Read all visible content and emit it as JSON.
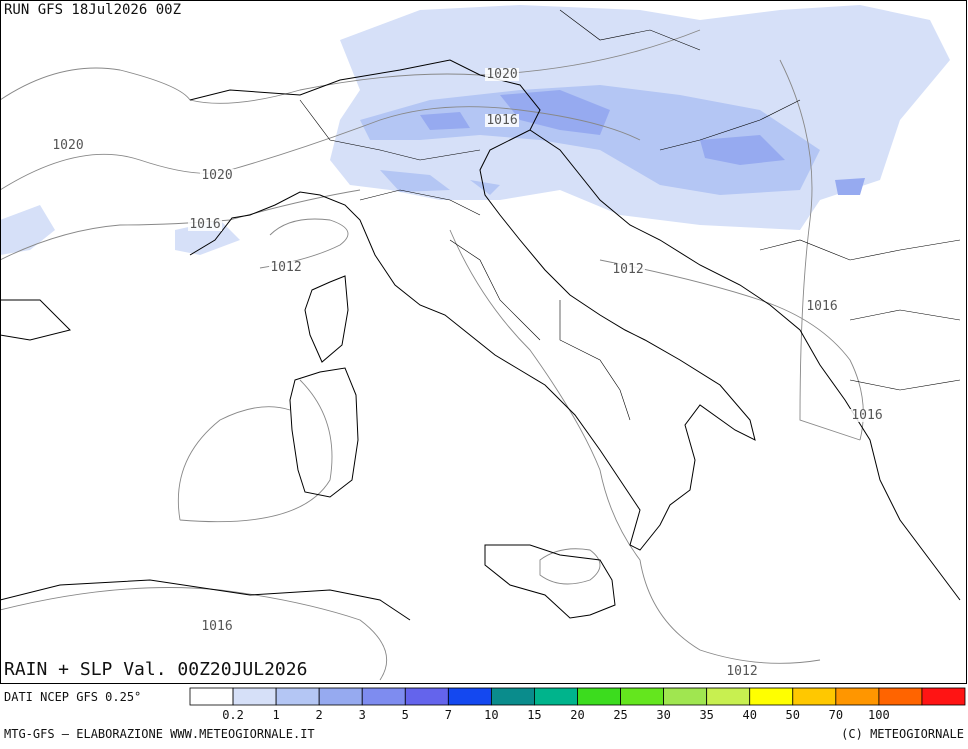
{
  "header": {
    "run": "RUN GFS 18Jul2026 00Z"
  },
  "map": {
    "isobar_labels": [
      "1020",
      "1020",
      "1016",
      "1020",
      "1016",
      "1012",
      "1012",
      "1016",
      "1016",
      "1016",
      "1012"
    ]
  },
  "footer": {
    "title": "RAIN + SLP Val. 00Z20JUL2026",
    "source": "DATI NCEP GFS 0.25°",
    "credit_left": "MTG-GFS — ELABORAZIONE WWW.METEOGIORNALE.IT",
    "credit_right": "(C) METEOGIORNALE"
  },
  "legend": {
    "labels": [
      "0.2",
      "1",
      "2",
      "3",
      "5",
      "7",
      "10",
      "15",
      "20",
      "25",
      "30",
      "35",
      "40",
      "50",
      "70",
      "100"
    ],
    "colors": [
      "#ffffff",
      "#d6e0f8",
      "#b4c6f4",
      "#96aaf0",
      "#7e8cf0",
      "#6464ec",
      "#1448f0",
      "#0a8c8c",
      "#00b48c",
      "#3cdc1e",
      "#64e61e",
      "#a0e650",
      "#c8f050",
      "#ffff00",
      "#ffc800",
      "#ff9600",
      "#ff6400",
      "#ff1414"
    ]
  }
}
